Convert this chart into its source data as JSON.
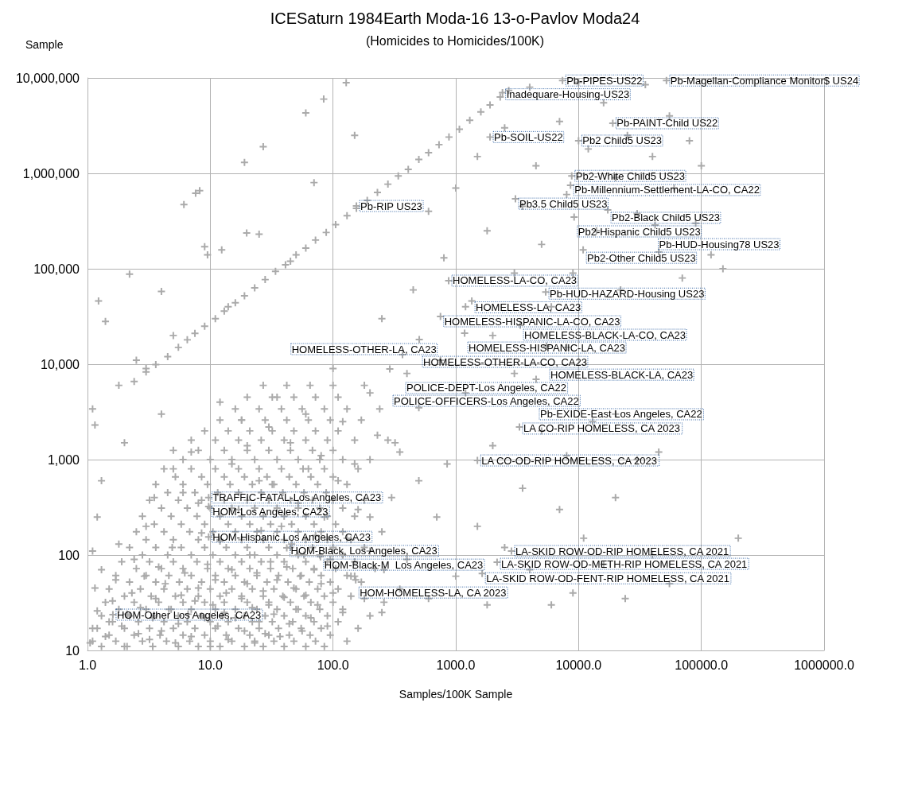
{
  "chart_data": {
    "type": "scatter",
    "title": "ICESaturn 1984Earth Moda-16 13-o-Pavlov Moda24",
    "subtitle": "(Homicides to Homicides/100K)",
    "xlabel": "Samples/100K Sample",
    "ylabel": "Sample",
    "log": "xy",
    "grid": true,
    "marker": "cross",
    "color": "#aaaaaa",
    "xlim": [
      1,
      1000000
    ],
    "xticks": [
      {
        "value": 1,
        "label": "1.0"
      },
      {
        "value": 10,
        "label": "10.0"
      },
      {
        "value": 100,
        "label": "100.0"
      },
      {
        "value": 1000,
        "label": "1000.0"
      },
      {
        "value": 10000,
        "label": "10000.0"
      },
      {
        "value": 100000,
        "label": "100000.0"
      },
      {
        "value": 1000000,
        "label": "1000000.0"
      }
    ],
    "ylim": [
      10,
      10000000
    ],
    "yticks": [
      {
        "value": 10,
        "label": "10"
      },
      {
        "value": 100,
        "label": "100"
      },
      {
        "value": 1000,
        "label": "1,000"
      },
      {
        "value": 10000,
        "label": "10,000"
      },
      {
        "value": 100000,
        "label": "100,000"
      },
      {
        "value": 1000000,
        "label": "1,000,000"
      },
      {
        "value": 10000000,
        "label": "10,000,000"
      }
    ],
    "x": [
      6.1,
      7.6,
      8.2,
      12.4,
      19.8,
      19,
      27,
      60,
      84,
      128,
      2.4,
      3,
      3.6,
      4.5,
      5.5,
      6.5,
      7.5,
      9,
      11,
      13,
      16,
      19,
      23,
      28,
      34,
      41,
      50,
      60,
      72,
      88,
      105,
      130,
      155,
      190,
      230,
      280,
      340,
      410,
      500,
      600,
      730,
      880,
      1070,
      1300,
      1600,
      1900,
      2300,
      2700,
      1.3,
      2.1,
      3.4,
      5.5,
      8,
      12,
      19,
      27,
      40,
      60,
      85,
      1.1,
      1.7,
      2.8,
      4.4,
      6.8,
      10,
      15,
      23,
      33,
      48,
      72,
      130,
      1.5,
      2.4,
      3.9,
      6,
      9,
      13.5,
      21,
      30,
      44,
      65,
      95,
      1.2,
      2,
      3.2,
      5,
      7.5,
      11,
      17,
      25,
      36,
      55,
      80,
      160,
      1.6,
      2.6,
      4.2,
      6.5,
      10,
      14,
      22,
      32,
      47,
      70,
      110,
      1.3,
      2.2,
      3.5,
      5.5,
      8.5,
      12.5,
      19,
      28,
      40,
      60,
      90,
      200,
      1.8,
      3,
      4.8,
      7,
      11,
      16,
      24,
      35,
      52,
      78,
      120,
      1.4,
      2.4,
      3.8,
      6,
      9,
      13,
      20,
      30,
      45,
      66,
      100,
      260,
      2,
      3.3,
      5.2,
      8,
      12,
      18,
      27,
      39,
      58,
      85,
      140,
      1.5,
      2.7,
      4.2,
      6.5,
      10,
      15,
      22,
      33,
      50,
      75,
      110,
      350,
      2.2,
      3.6,
      5.6,
      8.5,
      13,
      19,
      29,
      43,
      64,
      95,
      170,
      1.7,
      3,
      4.6,
      7,
      11,
      16,
      24,
      36,
      55,
      80,
      130,
      2.5,
      4,
      6,
      9.5,
      14,
      21,
      31,
      47,
      70,
      105,
      220,
      1.9,
      3.2,
      5,
      7.8,
      12,
      18,
      26,
      40,
      60,
      90,
      150,
      2.8,
      4.5,
      7,
      10.5,
      16,
      23,
      35,
      52,
      78,
      120,
      2.2,
      3.6,
      5.8,
      9,
      13.5,
      20,
      30,
      45,
      68,
      100,
      180,
      3,
      5,
      8,
      12,
      18,
      27,
      40,
      60,
      90,
      140,
      2.5,
      4.2,
      6.8,
      10.5,
      16,
      24,
      35,
      52,
      80,
      120,
      250,
      3.5,
      5.8,
      9,
      14,
      21,
      31,
      46,
      70,
      105,
      2.8,
      4.8,
      7.8,
      12,
      18,
      27,
      40,
      60,
      90,
      150,
      4,
      6.5,
      10,
      15,
      23,
      35,
      52,
      78,
      120,
      3.2,
      5.5,
      8.5,
      13,
      20,
      30,
      45,
      68,
      100,
      180,
      4.5,
      7.5,
      11.5,
      17,
      26,
      39,
      58,
      88,
      3.6,
      6,
      9.5,
      14.5,
      22,
      33,
      50,
      75,
      130,
      5.2,
      8.5,
      13,
      19,
      29,
      44,
      66,
      100,
      4.2,
      7,
      11,
      17,
      25,
      38,
      57,
      85,
      160,
      6,
      10,
      15,
      23,
      35,
      52,
      78,
      120,
      200,
      5,
      8,
      13,
      20,
      30,
      45,
      68,
      100,
      7,
      11,
      17,
      26,
      40,
      60,
      90,
      150,
      280,
      9,
      14,
      21,
      32,
      48,
      72,
      110,
      12,
      18,
      28,
      42,
      63,
      95,
      170,
      16,
      25,
      38,
      56,
      85,
      130,
      240,
      20,
      32,
      48,
      72,
      110,
      27,
      42,
      65,
      100,
      180,
      1.05,
      1.1,
      1.2,
      1.15,
      1.3,
      1.1,
      1.2,
      1.3,
      1.4,
      1.5,
      1.6,
      1.7,
      1.8,
      1.9,
      2.0,
      2.1,
      2.3,
      2.4,
      2.6,
      2.7,
      2.9,
      3.0,
      3.2,
      3.4,
      3.6,
      3.8,
      4.0,
      4.3,
      4.6,
      4.9,
      5.2,
      5.5,
      5.8,
      6.2,
      6.6,
      7.0,
      7.5,
      8.0,
      8.5,
      9.0,
      9.5,
      3.5,
      5,
      7,
      2,
      4,
      6,
      8,
      10,
      10.5,
      11,
      11.5,
      12,
      13,
      13.5,
      14,
      15,
      16,
      17,
      18,
      19,
      20,
      21,
      22,
      23,
      24,
      25,
      26,
      27,
      28,
      30,
      31,
      32,
      33,
      35,
      37,
      38,
      40,
      42,
      44,
      46,
      48,
      50,
      52,
      54,
      56,
      58,
      60,
      63,
      66,
      70,
      72,
      75,
      80,
      85,
      90,
      95,
      100,
      110,
      120,
      130,
      140,
      160,
      180,
      200,
      230,
      260,
      300,
      15,
      20,
      25,
      30,
      45,
      60,
      80,
      12,
      18,
      35,
      120,
      150,
      200,
      350,
      500,
      1.23,
      2.2,
      1.1,
      1.15,
      1.4,
      1.8,
      2.5,
      3,
      4,
      5,
      9,
      9.5,
      14,
      25,
      45,
      70,
      150,
      100,
      250,
      400,
      450,
      600,
      800,
      1000,
      1200,
      1500,
      1800,
      2000,
      2500,
      3000,
      3500,
      4000,
      4500,
      5000,
      6000,
      7000,
      8000,
      9000,
      10000,
      12000,
      14000,
      16000,
      20000,
      22000,
      25000,
      30000,
      35000,
      40000,
      45000,
      55000,
      60000,
      70000,
      80000,
      90000,
      100000,
      120000,
      150000,
      150,
      200,
      250,
      320,
      400,
      500,
      600,
      700,
      850,
      1000,
      1200,
      1500,
      1800,
      2000,
      2500,
      3000,
      3500,
      4000,
      5000,
      6000,
      7000,
      8000,
      9000,
      11000,
      13000,
      16000,
      20000,
      24000,
      30000,
      40000,
      45000,
      55000,
      200000,
      20000,
      8000,
      7400,
      52000,
      2400,
      19000,
      1900,
      10000,
      8800,
      8600,
      3060,
      155,
      17300,
      9200,
      42000,
      10900,
      875,
      5400,
      1350,
      750,
      3350,
      1180,
      504,
      5480,
      368,
      750,
      290,
      4510,
      3300,
      1500,
      9.7,
      9.7,
      9.7,
      42,
      79,
      2840,
      2170,
      1640,
      153,
      1.61
    ],
    "values": [
      470000,
      620000,
      660000,
      158000,
      237000,
      1300000,
      1900000,
      4300000,
      6000000,
      8900000,
      6600,
      8300,
      9900,
      12000,
      15000,
      18000,
      21000,
      25000,
      30000,
      36000,
      44000,
      52000,
      63000,
      77000,
      94000,
      110000,
      140000,
      165000,
      200000,
      240000,
      290000,
      360000,
      430000,
      520000,
      630000,
      770000,
      940000,
      1100000,
      1400000,
      1650000,
      2000000,
      2400000,
      2900000,
      3600000,
      4400000,
      5200000,
      6300000,
      7400000,
      11,
      11,
      11,
      11,
      11,
      11,
      11,
      11,
      11,
      11,
      11,
      12.5,
      12.5,
      12.5,
      12.5,
      12.5,
      12.5,
      12.5,
      12.5,
      12.5,
      12.5,
      12.5,
      12.5,
      14.5,
      14.5,
      14.5,
      14.5,
      14.5,
      14.5,
      14.5,
      14.5,
      14.5,
      14.5,
      14.5,
      17,
      17,
      17,
      17,
      17,
      17,
      17,
      17,
      17,
      17,
      17,
      17,
      20,
      20,
      20,
      20,
      20,
      20,
      20,
      20,
      20,
      20,
      20,
      23,
      23,
      23,
      23,
      23,
      23,
      23,
      23,
      23,
      23,
      23,
      23,
      27,
      27,
      27,
      27,
      27,
      27,
      27,
      27,
      27,
      27,
      27,
      32,
      32,
      32,
      32,
      32,
      32,
      32,
      32,
      32,
      32,
      32,
      32,
      37,
      37,
      37,
      37,
      37,
      37,
      37,
      37,
      37,
      37,
      37,
      44,
      44,
      44,
      44,
      44,
      44,
      44,
      44,
      44,
      44,
      44,
      44,
      52,
      52,
      52,
      52,
      52,
      52,
      52,
      52,
      52,
      52,
      52,
      61,
      61,
      61,
      61,
      61,
      61,
      61,
      61,
      61,
      61,
      61,
      72,
      72,
      72,
      72,
      72,
      72,
      72,
      72,
      72,
      72,
      72,
      85,
      85,
      85,
      85,
      85,
      85,
      85,
      85,
      85,
      85,
      85,
      100,
      100,
      100,
      100,
      100,
      100,
      100,
      100,
      100,
      100,
      120,
      120,
      120,
      120,
      120,
      120,
      120,
      120,
      120,
      120,
      120,
      145,
      145,
      145,
      145,
      145,
      145,
      145,
      145,
      145,
      145,
      175,
      175,
      175,
      175,
      175,
      175,
      175,
      175,
      175,
      175,
      175,
      210,
      210,
      210,
      210,
      210,
      210,
      210,
      210,
      210,
      255,
      255,
      255,
      255,
      255,
      255,
      255,
      255,
      255,
      255,
      310,
      310,
      310,
      310,
      310,
      310,
      310,
      310,
      310,
      375,
      375,
      375,
      375,
      375,
      375,
      375,
      375,
      375,
      375,
      450,
      450,
      450,
      450,
      450,
      450,
      450,
      450,
      550,
      550,
      550,
      550,
      550,
      550,
      550,
      550,
      550,
      660,
      660,
      660,
      660,
      660,
      660,
      660,
      660,
      800,
      800,
      800,
      800,
      800,
      800,
      800,
      800,
      800,
      1000,
      1000,
      1000,
      1000,
      1000,
      1000,
      1000,
      1000,
      1000,
      1250,
      1250,
      1250,
      1250,
      1250,
      1250,
      1250,
      1250,
      1600,
      1600,
      1600,
      1600,
      1600,
      1600,
      1600,
      1600,
      1600,
      2000,
      2000,
      2000,
      2000,
      2000,
      2000,
      2000,
      2600,
      2600,
      2600,
      2600,
      2600,
      2600,
      2600,
      3400,
      3400,
      3400,
      3400,
      3400,
      3400,
      3400,
      4500,
      4500,
      4500,
      4500,
      4500,
      6000,
      6000,
      6000,
      6000,
      6000,
      12,
      17,
      26,
      45,
      70,
      110,
      250,
      600,
      14,
      20,
      33,
      55,
      130,
      18,
      11,
      24,
      40,
      90,
      15,
      28,
      60,
      200,
      13,
      22,
      35,
      75,
      16,
      50,
      27,
      120,
      12,
      19,
      38,
      65,
      24,
      14,
      33,
      45,
      170,
      22,
      80,
      400,
      800,
      1200,
      1500,
      3000,
      450,
      350,
      11,
      30,
      55,
      18,
      140,
      25,
      40,
      13,
      70,
      22,
      300,
      35,
      16,
      50,
      100,
      28,
      12,
      65,
      20,
      180,
      42,
      15,
      30,
      85,
      550,
      24,
      55,
      14,
      200,
      36,
      75,
      19,
      130,
      45,
      27,
      350,
      60,
      16,
      100,
      38,
      800,
      22,
      70,
      160,
      30,
      50,
      250,
      18,
      90,
      40,
      600,
      25,
      150,
      60,
      300,
      35,
      110,
      1800,
      70,
      400,
      900,
      1400,
      600,
      2200,
      1500,
      3000,
      1100,
      4000,
      2600,
      4500,
      2500,
      900,
      5000,
      1200,
      600,
      46000,
      88000,
      3400,
      2300,
      28000,
      6000,
      11000,
      9000,
      58000,
      20000,
      170000,
      140000,
      40000,
      230000,
      120000,
      800000,
      2500000,
      9000,
      30000,
      8000,
      60000,
      400000,
      130000,
      700000,
      40000,
      1500000,
      250000,
      20000,
      3000000,
      90000,
      450000,
      8000000,
      1200000,
      180000,
      40000,
      3500000,
      600000,
      90000,
      9000000,
      1800000,
      250000,
      5500000,
      900000,
      60000,
      2500000,
      380000,
      8500000,
      1500000,
      150000,
      4000000,
      700000,
      80000,
      2200000,
      300000,
      1200000,
      140000,
      100000,
      60,
      250,
      25,
      1500,
      90,
      3500,
      35,
      250,
      900,
      60,
      5000,
      200,
      30,
      1400,
      120,
      8000,
      500,
      70,
      2000,
      30,
      300,
      1100,
      40,
      150,
      2500,
      80,
      400,
      35,
      1000,
      100,
      1200,
      50,
      150,
      3000,
      15000,
      9400000,
      9400000,
      7000000,
      3350000,
      2400000,
      2200000,
      940000,
      750000,
      540000,
      455000,
      414000,
      348000,
      287000,
      158000,
      75000,
      57000,
      46000,
      31600,
      25600,
      21100,
      18100,
      15500,
      12600,
      11000,
      8900,
      6950,
      2200,
      980,
      400,
      322,
      155,
      119,
      96,
      110,
      84,
      64,
      55,
      23.7
    ],
    "annotations": [
      {
        "text": "Pb-PIPES-US22",
        "x": 7400,
        "y": 9400000
      },
      {
        "text": "Pb-Magellan-Compliance Monitor$ US24",
        "x": 52000,
        "y": 9400000
      },
      {
        "text": "Inadequare-Housing-US23",
        "x": 2400,
        "y": 7000000
      },
      {
        "text": "Pb-PAINT-Child US22",
        "x": 19000,
        "y": 3350000
      },
      {
        "text": "Pb-SOIL-US22",
        "x": 1900,
        "y": 2400000
      },
      {
        "text": "Pb2 Child5 US23",
        "x": 10000,
        "y": 2200000
      },
      {
        "text": "Pb2-White Child5 US23",
        "x": 8800,
        "y": 940000
      },
      {
        "text": "Pb-Millennium-Settlement-LA-CO, CA22",
        "x": 8600,
        "y": 750000
      },
      {
        "text": "Pb3.5 Child5 US23",
        "x": 3060,
        "y": 540000
      },
      {
        "text": "Pb-RIP US23",
        "x": 155,
        "y": 455000
      },
      {
        "text": "Pb2-Black Child5 US23",
        "x": 17300,
        "y": 414000
      },
      {
        "text": "Pb2-Hispanic Child5 US23",
        "x": 9200,
        "y": 348000
      },
      {
        "text": "Pb-HUD-Housing78 US23",
        "x": 42000,
        "y": 287000
      },
      {
        "text": "Pb2-Other Child5 US23",
        "x": 10900,
        "y": 158000
      },
      {
        "text": "HOMELESS-LA-CO, CA23",
        "x": 875,
        "y": 75000
      },
      {
        "text": "Pb-HUD-HAZARD-Housing US23",
        "x": 5400,
        "y": 57000
      },
      {
        "text": "HOMELESS-LA, CA23",
        "x": 1350,
        "y": 46000
      },
      {
        "text": "HOMELESS-HISPANIC-LA-CO, CA23",
        "x": 750,
        "y": 31600
      },
      {
        "text": "HOMELESS-BLACK-LA-CO, CA23",
        "x": 3350,
        "y": 25600
      },
      {
        "text": "HOMELESS-HISPANIC-LA, CA23",
        "x": 1180,
        "y": 21100
      },
      {
        "text": "HOMELESS-OTHER-LA-CO, CA23",
        "x": 504,
        "y": 18100
      },
      {
        "text": "HOMELESS-BLACK-LA, CA23",
        "x": 5480,
        "y": 15500
      },
      {
        "text": "POLICE-DEPT-Los Angeles, CA22",
        "x": 368,
        "y": 12600
      },
      {
        "text": "HOMELESS-OTHER-LA, CA23",
        "x": 750,
        "y": 11000
      },
      {
        "text": "POLICE-OFFICERS-Los Angeles, CA22",
        "x": 290,
        "y": 8900
      },
      {
        "text": "Pb-EXIDE-East Los Angeles, CA22",
        "x": 4510,
        "y": 6950
      },
      {
        "text": "LA CO-RIP HOMELESS, CA 2023",
        "x": 3300,
        "y": 2200
      },
      {
        "text": "LA CO-OD-RIP HOMELESS, CA 2023",
        "x": 1500,
        "y": 980
      },
      {
        "text": "TRAFFIC-FATAL-Los Angeles, CA23",
        "x": 9.7,
        "y": 400
      },
      {
        "text": "HOM-Los Angeles, CA23",
        "x": 9.7,
        "y": 322
      },
      {
        "text": "HOM-Hispanic Los Angeles, CA23",
        "x": 9.7,
        "y": 155
      },
      {
        "text": "HOM-Black, Los Angeles, CA23",
        "x": 42,
        "y": 119
      },
      {
        "text": "HOM-Black-M  Los Angeles, CA23",
        "x": 79,
        "y": 96
      },
      {
        "text": "LA-SKID ROW-OD-RIP HOMELESS, CA 2021",
        "x": 2840,
        "y": 110
      },
      {
        "text": "LA-SKID ROW-OD-METH-RIP HOMELESS, CA 2021",
        "x": 2170,
        "y": 84
      },
      {
        "text": "LA-SKID ROW-OD-FENT-RIP HOMELESS, CA 2021",
        "x": 1640,
        "y": 64
      },
      {
        "text": "HOM-HOMELESS-LA, CA 2023",
        "x": 153,
        "y": 55
      },
      {
        "text": "HOM-Other Los Angeles, CA23",
        "x": 1.61,
        "y": 23.7
      }
    ]
  }
}
